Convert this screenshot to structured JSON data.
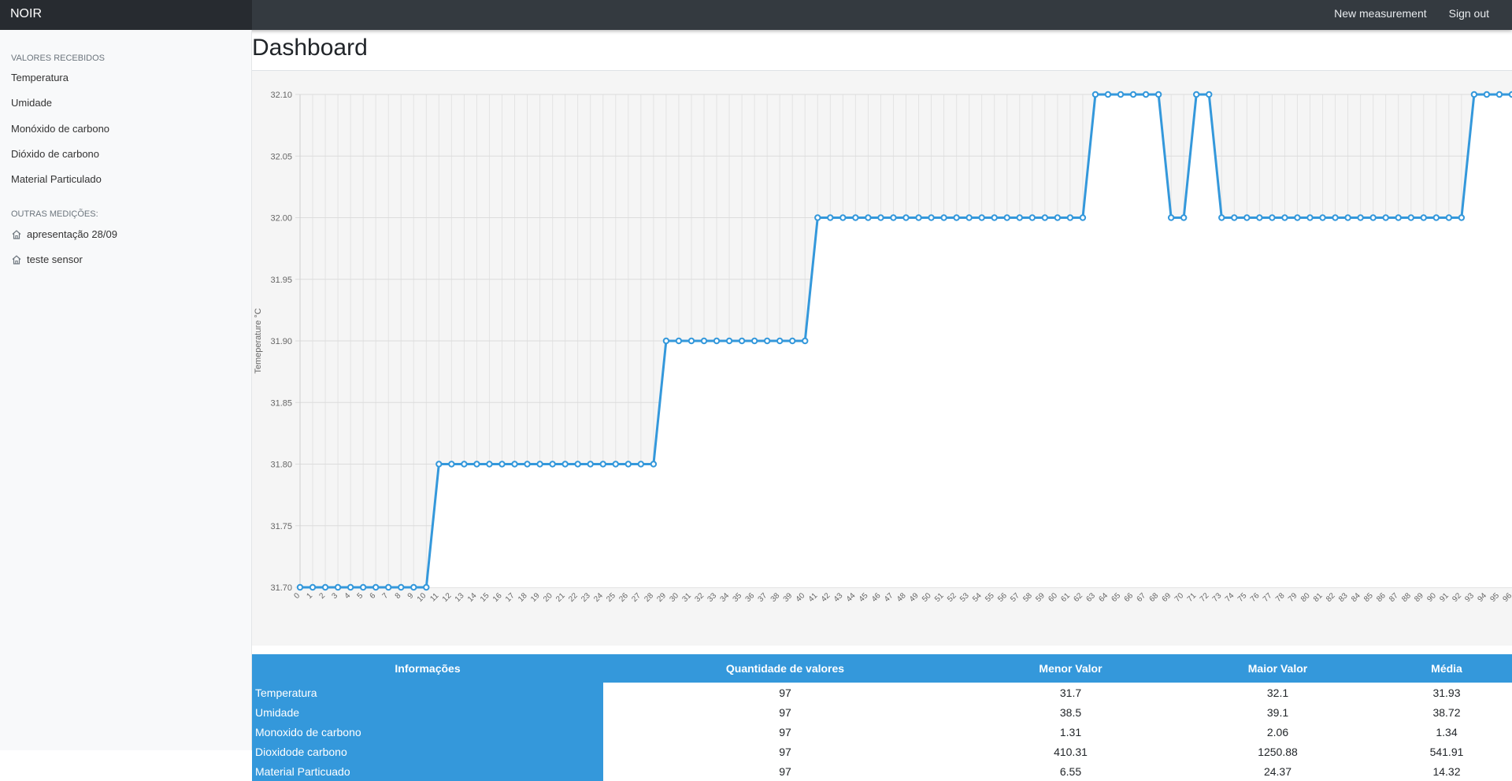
{
  "navbar": {
    "brand": "NOIR",
    "links": [
      "New measurement",
      "Sign out"
    ]
  },
  "sidebar": {
    "section1_heading": "VALORES RECEBIDOS",
    "items": [
      "Temperatura",
      "Umidade",
      "Monóxido de carbono",
      "Dióxido de carbono",
      "Material Particulado"
    ],
    "section2_heading": "OUTRAS MEDIÇÕES:",
    "other": [
      {
        "label": "apresentação 28/09",
        "icon": "home-icon"
      },
      {
        "label": "teste sensor",
        "icon": "home-icon"
      }
    ]
  },
  "page": {
    "title": "Dashboard"
  },
  "chart_data": {
    "type": "line",
    "ylabel": "Temeperature °C",
    "xlabel": "",
    "ylim": [
      31.7,
      32.1
    ],
    "yticks": [
      "31.70",
      "31.75",
      "31.80",
      "31.85",
      "31.90",
      "31.95",
      "32.00",
      "32.05",
      "32.10"
    ],
    "grid": true,
    "color": "#3498db",
    "x": [
      0,
      1,
      2,
      3,
      4,
      5,
      6,
      7,
      8,
      9,
      10,
      11,
      12,
      13,
      14,
      15,
      16,
      17,
      18,
      19,
      20,
      21,
      22,
      23,
      24,
      25,
      26,
      27,
      28,
      29,
      30,
      31,
      32,
      33,
      34,
      35,
      36,
      37,
      38,
      39,
      40,
      41,
      42,
      43,
      44,
      45,
      46,
      47,
      48,
      49,
      50,
      51,
      52,
      53,
      54,
      55,
      56,
      57,
      58,
      59,
      60,
      61,
      62,
      63,
      64,
      65,
      66,
      67,
      68,
      69,
      70,
      71,
      72,
      73,
      74,
      75,
      76,
      77,
      78,
      79,
      80,
      81,
      82,
      83,
      84,
      85,
      86,
      87,
      88,
      89,
      90,
      91,
      92,
      93,
      94,
      95,
      96
    ],
    "series": [
      {
        "values": [
          31.7,
          31.7,
          31.7,
          31.7,
          31.7,
          31.7,
          31.7,
          31.7,
          31.7,
          31.7,
          31.7,
          31.8,
          31.8,
          31.8,
          31.8,
          31.8,
          31.8,
          31.8,
          31.8,
          31.8,
          31.8,
          31.8,
          31.8,
          31.8,
          31.8,
          31.8,
          31.8,
          31.8,
          31.8,
          31.9,
          31.9,
          31.9,
          31.9,
          31.9,
          31.9,
          31.9,
          31.9,
          31.9,
          31.9,
          31.9,
          31.9,
          32.0,
          32.0,
          32.0,
          32.0,
          32.0,
          32.0,
          32.0,
          32.0,
          32.0,
          32.0,
          32.0,
          32.0,
          32.0,
          32.0,
          32.0,
          32.0,
          32.0,
          32.0,
          32.0,
          32.0,
          32.0,
          32.0,
          32.1,
          32.1,
          32.1,
          32.1,
          32.1,
          32.1,
          32.0,
          32.0,
          32.1,
          32.1,
          32.0,
          32.0,
          32.0,
          32.0,
          32.0,
          32.0,
          32.0,
          32.0,
          32.0,
          32.0,
          32.0,
          32.0,
          32.0,
          32.0,
          32.0,
          32.0,
          32.0,
          32.0,
          32.0,
          32.0,
          32.1,
          32.1,
          32.1,
          32.1
        ]
      }
    ]
  },
  "table": {
    "headers": [
      "Informações",
      "Quantidade de valores",
      "Menor Valor",
      "Maior Valor",
      "Média"
    ],
    "rows": [
      [
        "Temperatura",
        "97",
        "31.7",
        "32.1",
        "31.93"
      ],
      [
        "Umidade",
        "97",
        "38.5",
        "39.1",
        "38.72"
      ],
      [
        "Monoxido de carbono",
        "97",
        "1.31",
        "2.06",
        "1.34"
      ],
      [
        "Dioxidode carbono",
        "97",
        "410.31",
        "1250.88",
        "541.91"
      ],
      [
        "Material Particuado",
        "97",
        "6.55",
        "24.37",
        "14.32"
      ]
    ]
  }
}
